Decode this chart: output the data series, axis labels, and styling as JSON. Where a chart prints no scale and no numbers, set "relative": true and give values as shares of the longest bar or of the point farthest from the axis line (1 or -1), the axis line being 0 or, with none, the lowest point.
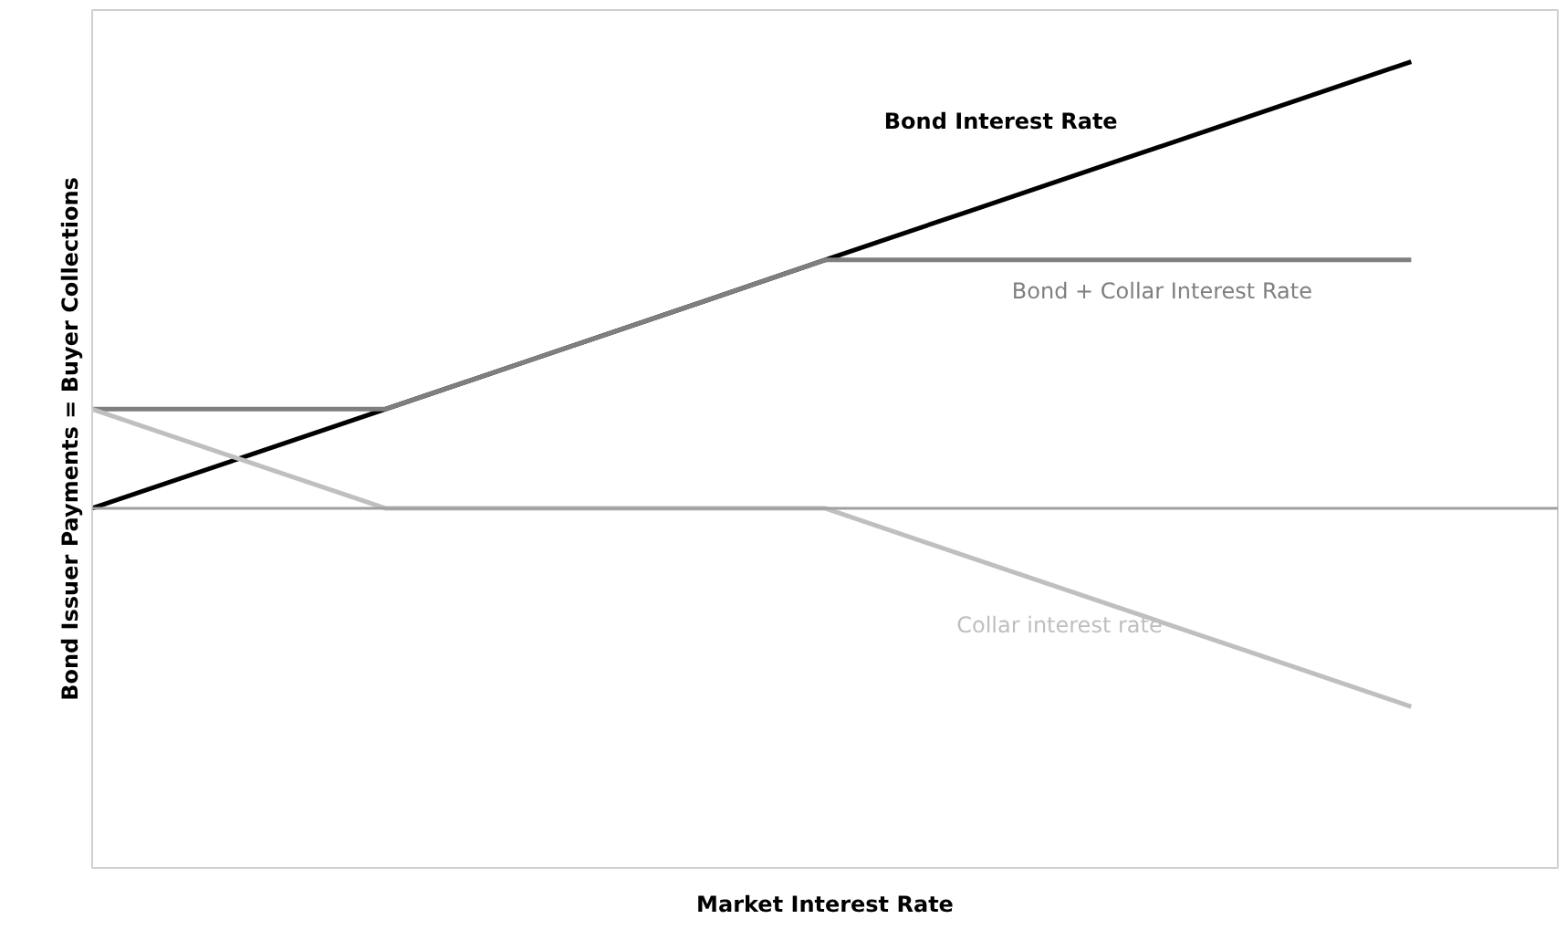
{
  "chart_data": {
    "type": "line",
    "relative": true,
    "annotations": [
      "Market Interest Rate"
    ],
    "ylabel": "Bond Issuer Payments = Buyer Collections",
    "categories": [
      null,
      null,
      null,
      null,
      null,
      null,
      null,
      null,
      null,
      null
    ],
    "series": [
      {
        "name": "Bond Interest Rate",
        "color": "#000000",
        "values": [
          0,
          0.111,
          0.222,
          0.333,
          0.444,
          0.556,
          0.667,
          0.778,
          0.889,
          1
        ]
      },
      {
        "name": "Bond + Collar Interest Rate",
        "color": "#7f7f7f",
        "values": [
          0.222,
          0.222,
          0.222,
          0.333,
          0.444,
          0.556,
          0.556,
          0.556,
          0.556,
          0.556
        ]
      },
      {
        "name": "Collar interest rate",
        "color": "#bfbfbf",
        "values": [
          0.222,
          0.111,
          0,
          0,
          0,
          0,
          -0.111,
          -0.222,
          -0.333,
          -0.444
        ]
      }
    ],
    "grid": false
  }
}
